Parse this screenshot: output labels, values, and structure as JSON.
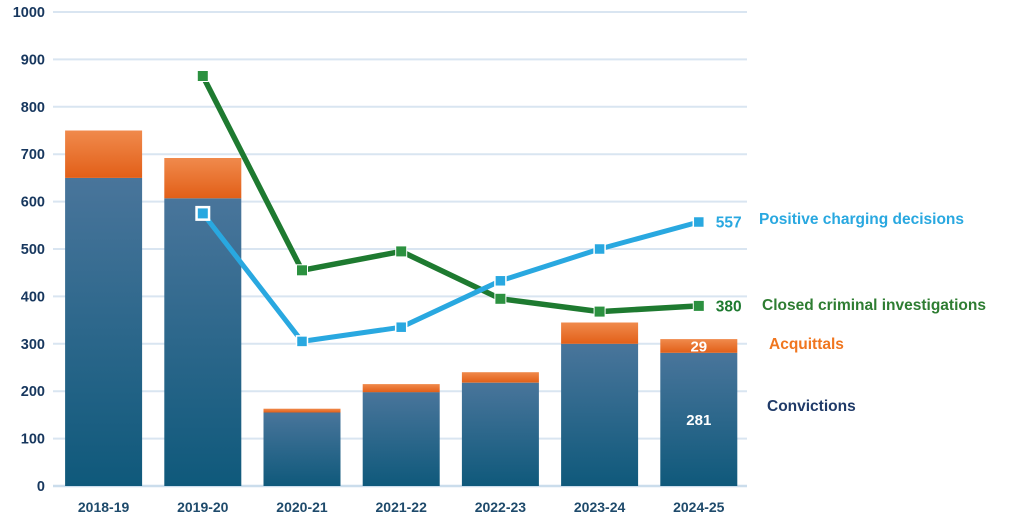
{
  "chart_data": {
    "type": "combo",
    "title": "",
    "categories": [
      "2018-19",
      "2019-20",
      "2020-21",
      "2021-22",
      "2022-23",
      "2023-24",
      "2024-25"
    ],
    "y_axis": {
      "min": 0,
      "max": 1000,
      "step": 100
    },
    "grid": true,
    "legend_position": "right",
    "bar_series": [
      {
        "name": "Convictions",
        "values": [
          650,
          607,
          155,
          198,
          218,
          300,
          281
        ],
        "color_top": "#49759B",
        "color_bottom": "#0F597B",
        "legend_color": "#1F3A68",
        "last_bar_label": "281",
        "last_bar_label_color": "#FFFFFF"
      },
      {
        "name": "Acquittals",
        "values": [
          100,
          85,
          8,
          17,
          22,
          45,
          29
        ],
        "color_top": "#F08A4C",
        "color_bottom": "#E25F18",
        "legend_color": "#F0761F",
        "last_bar_label": "29",
        "last_bar_label_color": "#FFFFFF"
      }
    ],
    "line_series": [
      {
        "name": "Closed criminal investigations",
        "values": [
          null,
          865,
          455,
          495,
          395,
          368,
          380
        ],
        "color": "#1E7A30",
        "marker_fill": "#2C9140",
        "end_label": "380",
        "first_marker_open": false
      },
      {
        "name": "Positive charging decisions",
        "values": [
          null,
          575,
          305,
          335,
          433,
          500,
          557
        ],
        "color": "#29A8E0",
        "marker_fill": "#29A8E0",
        "end_label": "557",
        "first_marker_open": true
      }
    ],
    "colors": {
      "axis_text": "#17375E",
      "category_text": "#1E4A6B",
      "gridline": "#D9E5F1",
      "zero_line": "#CBDDEC"
    }
  }
}
